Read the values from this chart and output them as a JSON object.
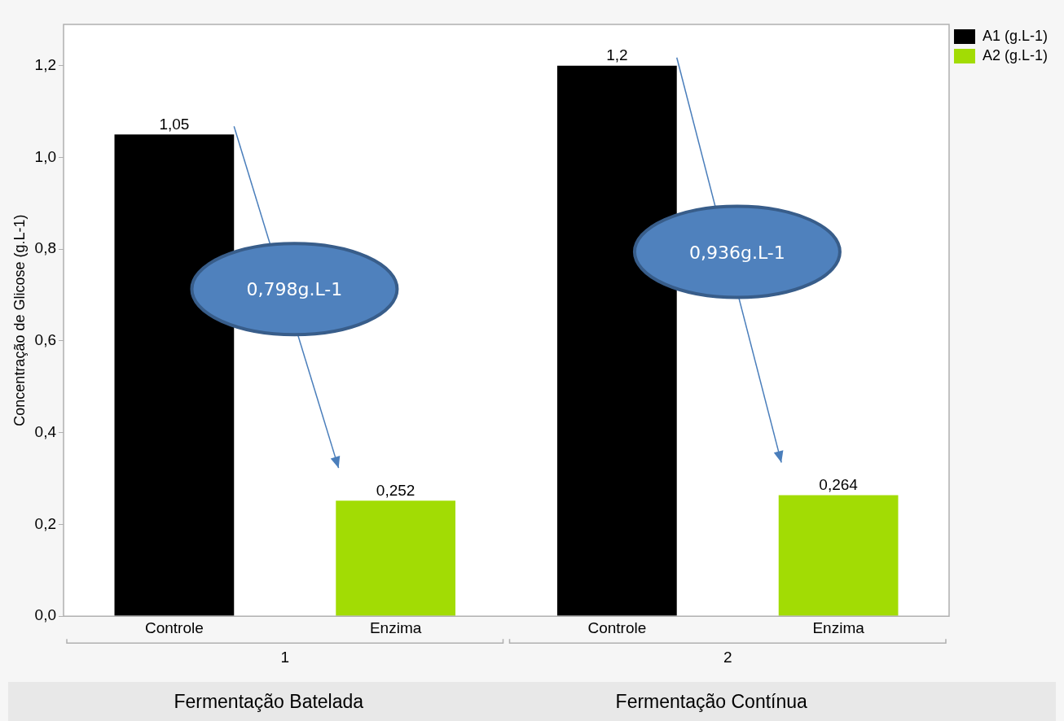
{
  "chart_data": {
    "type": "bar",
    "ylabel": "Concentração de Glicose (g.L-1)",
    "categories": [
      "Controle",
      "Enzima",
      "Controle",
      "Enzima"
    ],
    "series": [
      {
        "name": "A1 (g.L-1)",
        "color": "#000000",
        "values": [
          1.05,
          null,
          1.2,
          null
        ],
        "value_labels": [
          "1,05",
          null,
          "1,2",
          null
        ]
      },
      {
        "name": "A2 (g.L-1)",
        "color": "#a2dc04",
        "values": [
          null,
          0.252,
          null,
          0.264
        ],
        "value_labels": [
          null,
          "0,252",
          null,
          "0,264"
        ]
      }
    ],
    "ylim": [
      0,
      1.29
    ],
    "yticks": [
      {
        "value": 0,
        "label": "0,0"
      },
      {
        "value": 0.2,
        "label": "0,2"
      },
      {
        "value": 0.4,
        "label": "0,4"
      },
      {
        "value": 0.6,
        "label": "0,6"
      },
      {
        "value": 0.8,
        "label": "0,8"
      },
      {
        "value": 1.0,
        "label": "1,0"
      },
      {
        "value": 1.2,
        "label": "1,2"
      }
    ],
    "grid": false,
    "legend": "top right",
    "annotations": [
      "1",
      "2",
      "Fermentação Batelada",
      "Fermentação Contínua",
      "0,798g.L-1",
      "0,936g.L-1"
    ]
  }
}
